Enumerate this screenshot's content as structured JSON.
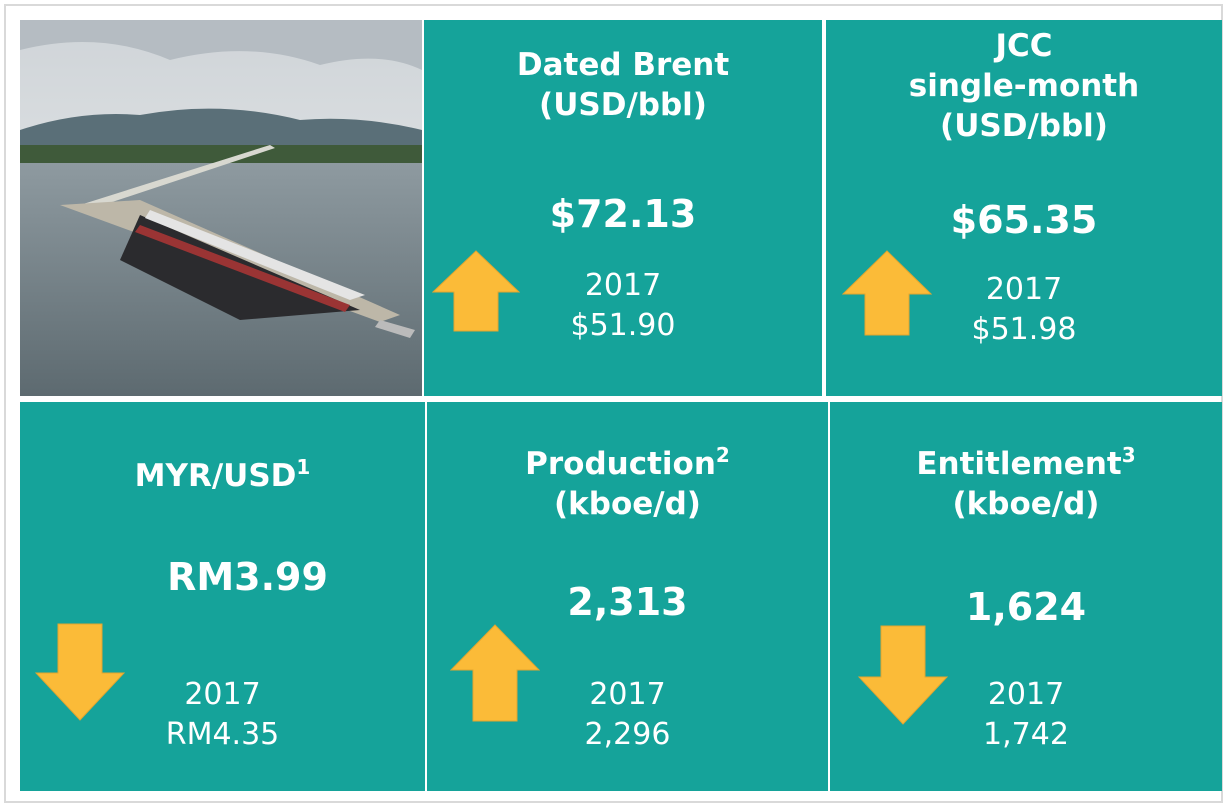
{
  "tiles": [
    {
      "title": [
        "Dated Brent",
        "(USD/bbl)"
      ],
      "value": "$72.13",
      "prior_year": "2017",
      "prior_value": "$51.90"
    },
    {
      "title": [
        "JCC",
        "single-month",
        "(USD/bbl)"
      ],
      "value": "$65.35",
      "prior_year": "2017",
      "prior_value": "$51.98"
    },
    {
      "title": [
        "MYR/USD"
      ],
      "title_note": "1",
      "value": "RM3.99",
      "prior_year": "2017",
      "prior_value": "RM4.35"
    },
    {
      "title": [
        "Production",
        "(kboe/d)"
      ],
      "title_note": "2",
      "value": "2,313",
      "prior_year": "2017",
      "prior_value": "2,296"
    },
    {
      "title": [
        "Entitlement",
        "(kboe/d)"
      ],
      "title_note": "3",
      "value": "1,624",
      "prior_year": "2017",
      "prior_value": "1,742"
    }
  ]
}
